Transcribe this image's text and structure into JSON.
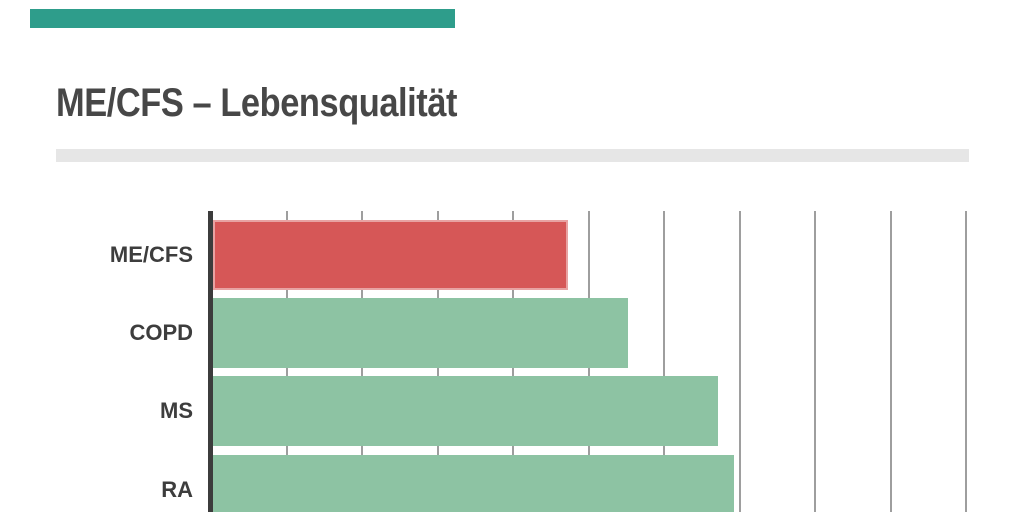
{
  "page": {
    "title": "ME/CFS – Lebensqualität"
  },
  "accent_bar": {
    "color": "#2e9d8b"
  },
  "divider": {
    "color": "#e6e6e6"
  },
  "colors": {
    "background": "#ffffff",
    "title_text": "#474747",
    "label_text": "#3d3d3d",
    "grid": "#9e9e9e",
    "axis": "#3c3c3c",
    "highlight_red": "#d65757",
    "bar_green": "#8dc3a3"
  },
  "chart_data": {
    "type": "bar",
    "orientation": "horizontal",
    "title": "ME/CFS – Lebensqualität",
    "categories": [
      "ME/CFS",
      "COPD",
      "MS",
      "RA"
    ],
    "values": [
      0.47,
      0.55,
      0.67,
      0.69
    ],
    "bar_colors": [
      "#d65757",
      "#8dc3a3",
      "#8dc3a3",
      "#8dc3a3"
    ],
    "highlight_index": 0,
    "xlabel": "",
    "ylabel": "",
    "xlim": [
      0,
      1
    ],
    "grid_step": 0.1,
    "grid": "vertical",
    "legend": "none"
  }
}
